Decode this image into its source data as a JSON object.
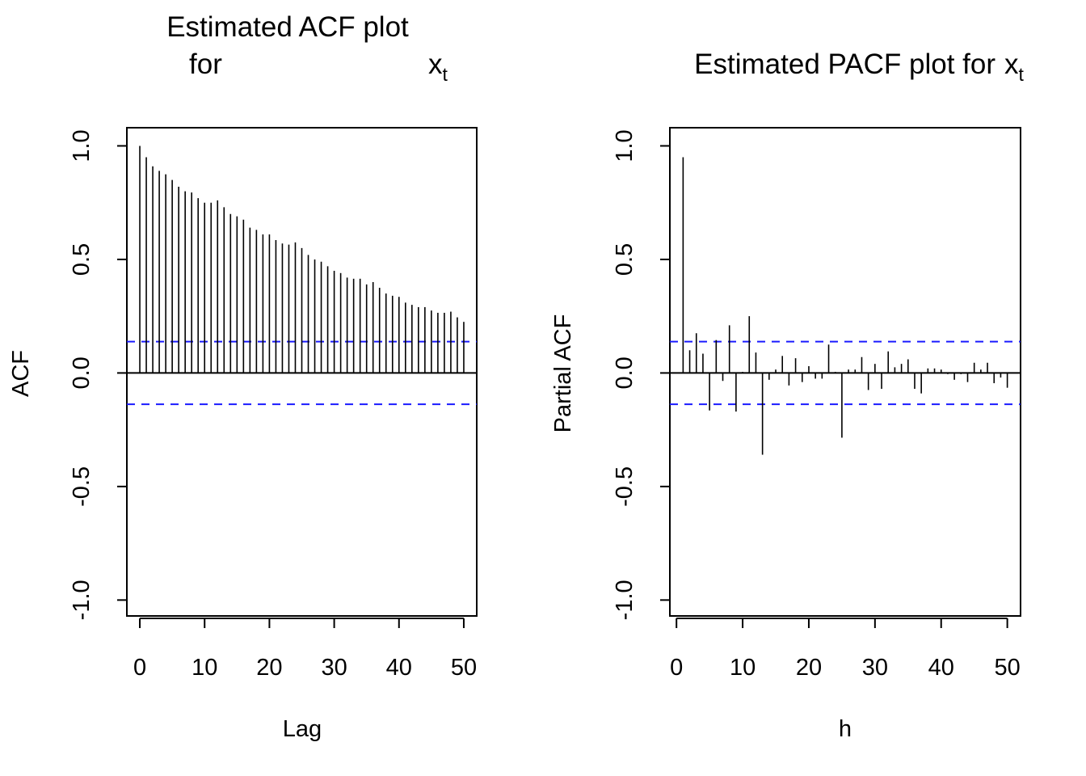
{
  "chart_data": [
    {
      "id": "acf",
      "type": "bar",
      "title_line1": "Estimated ACF plot",
      "title_line2_left": "for",
      "title_var": "x",
      "title_sub": "t",
      "xlabel": "Lag",
      "ylabel": "ACF",
      "xlim": [
        -2,
        52
      ],
      "ylim": [
        -1.07,
        1.08
      ],
      "x_ticks": [
        0,
        10,
        20,
        30,
        40,
        50
      ],
      "x_tick_labels": [
        "0",
        "10",
        "20",
        "30",
        "40",
        "50"
      ],
      "y_ticks": [
        -1.0,
        -0.5,
        0.0,
        0.5,
        1.0
      ],
      "y_tick_labels": [
        "-1.0",
        "-0.5",
        "0.0",
        "0.5",
        "1.0"
      ],
      "ci": 0.138,
      "x": [
        0,
        1,
        2,
        3,
        4,
        5,
        6,
        7,
        8,
        9,
        10,
        11,
        12,
        13,
        14,
        15,
        16,
        17,
        18,
        19,
        20,
        21,
        22,
        23,
        24,
        25,
        26,
        27,
        28,
        29,
        30,
        31,
        32,
        33,
        34,
        35,
        36,
        37,
        38,
        39,
        40,
        41,
        42,
        43,
        44,
        45,
        46,
        47,
        48,
        49,
        50
      ],
      "values": [
        1.0,
        0.95,
        0.91,
        0.89,
        0.875,
        0.85,
        0.82,
        0.8,
        0.795,
        0.77,
        0.75,
        0.75,
        0.76,
        0.73,
        0.7,
        0.69,
        0.675,
        0.64,
        0.63,
        0.61,
        0.61,
        0.585,
        0.57,
        0.565,
        0.575,
        0.55,
        0.52,
        0.5,
        0.49,
        0.47,
        0.45,
        0.44,
        0.42,
        0.415,
        0.415,
        0.39,
        0.4,
        0.375,
        0.35,
        0.34,
        0.335,
        0.31,
        0.3,
        0.29,
        0.29,
        0.275,
        0.265,
        0.265,
        0.27,
        0.245,
        0.225
      ]
    },
    {
      "id": "pacf",
      "type": "bar",
      "title_line1": "Estimated PACF plot for",
      "title_var": "x",
      "title_sub": "t",
      "xlabel": "h",
      "ylabel": "Partial ACF",
      "xlim": [
        -1,
        52
      ],
      "ylim": [
        -1.07,
        1.08
      ],
      "x_ticks": [
        0,
        10,
        20,
        30,
        40,
        50
      ],
      "x_tick_labels": [
        "0",
        "10",
        "20",
        "30",
        "40",
        "50"
      ],
      "y_ticks": [
        -1.0,
        -0.5,
        0.0,
        0.5,
        1.0
      ],
      "y_tick_labels": [
        "-1.0",
        "-0.5",
        "0.0",
        "0.5",
        "1.0"
      ],
      "ci": 0.138,
      "x": [
        1,
        2,
        3,
        4,
        5,
        6,
        7,
        8,
        9,
        10,
        11,
        12,
        13,
        14,
        15,
        16,
        17,
        18,
        19,
        20,
        21,
        22,
        23,
        24,
        25,
        26,
        27,
        28,
        29,
        30,
        31,
        32,
        33,
        34,
        35,
        36,
        37,
        38,
        39,
        40,
        41,
        42,
        43,
        44,
        45,
        46,
        47,
        48,
        49,
        50
      ],
      "values": [
        0.95,
        0.1,
        0.175,
        0.085,
        -0.165,
        0.145,
        -0.035,
        0.21,
        -0.17,
        0.005,
        0.25,
        0.09,
        -0.36,
        -0.03,
        0.015,
        0.075,
        -0.055,
        0.065,
        -0.04,
        0.03,
        -0.025,
        -0.025,
        0.125,
        0.005,
        -0.285,
        0.015,
        0.015,
        0.07,
        -0.075,
        0.04,
        -0.07,
        0.095,
        0.025,
        0.04,
        0.06,
        -0.07,
        -0.09,
        0.02,
        0.02,
        0.015,
        -0.005,
        -0.03,
        -0.005,
        -0.04,
        0.045,
        0.015,
        0.045,
        -0.045,
        -0.02,
        -0.065
      ]
    }
  ]
}
